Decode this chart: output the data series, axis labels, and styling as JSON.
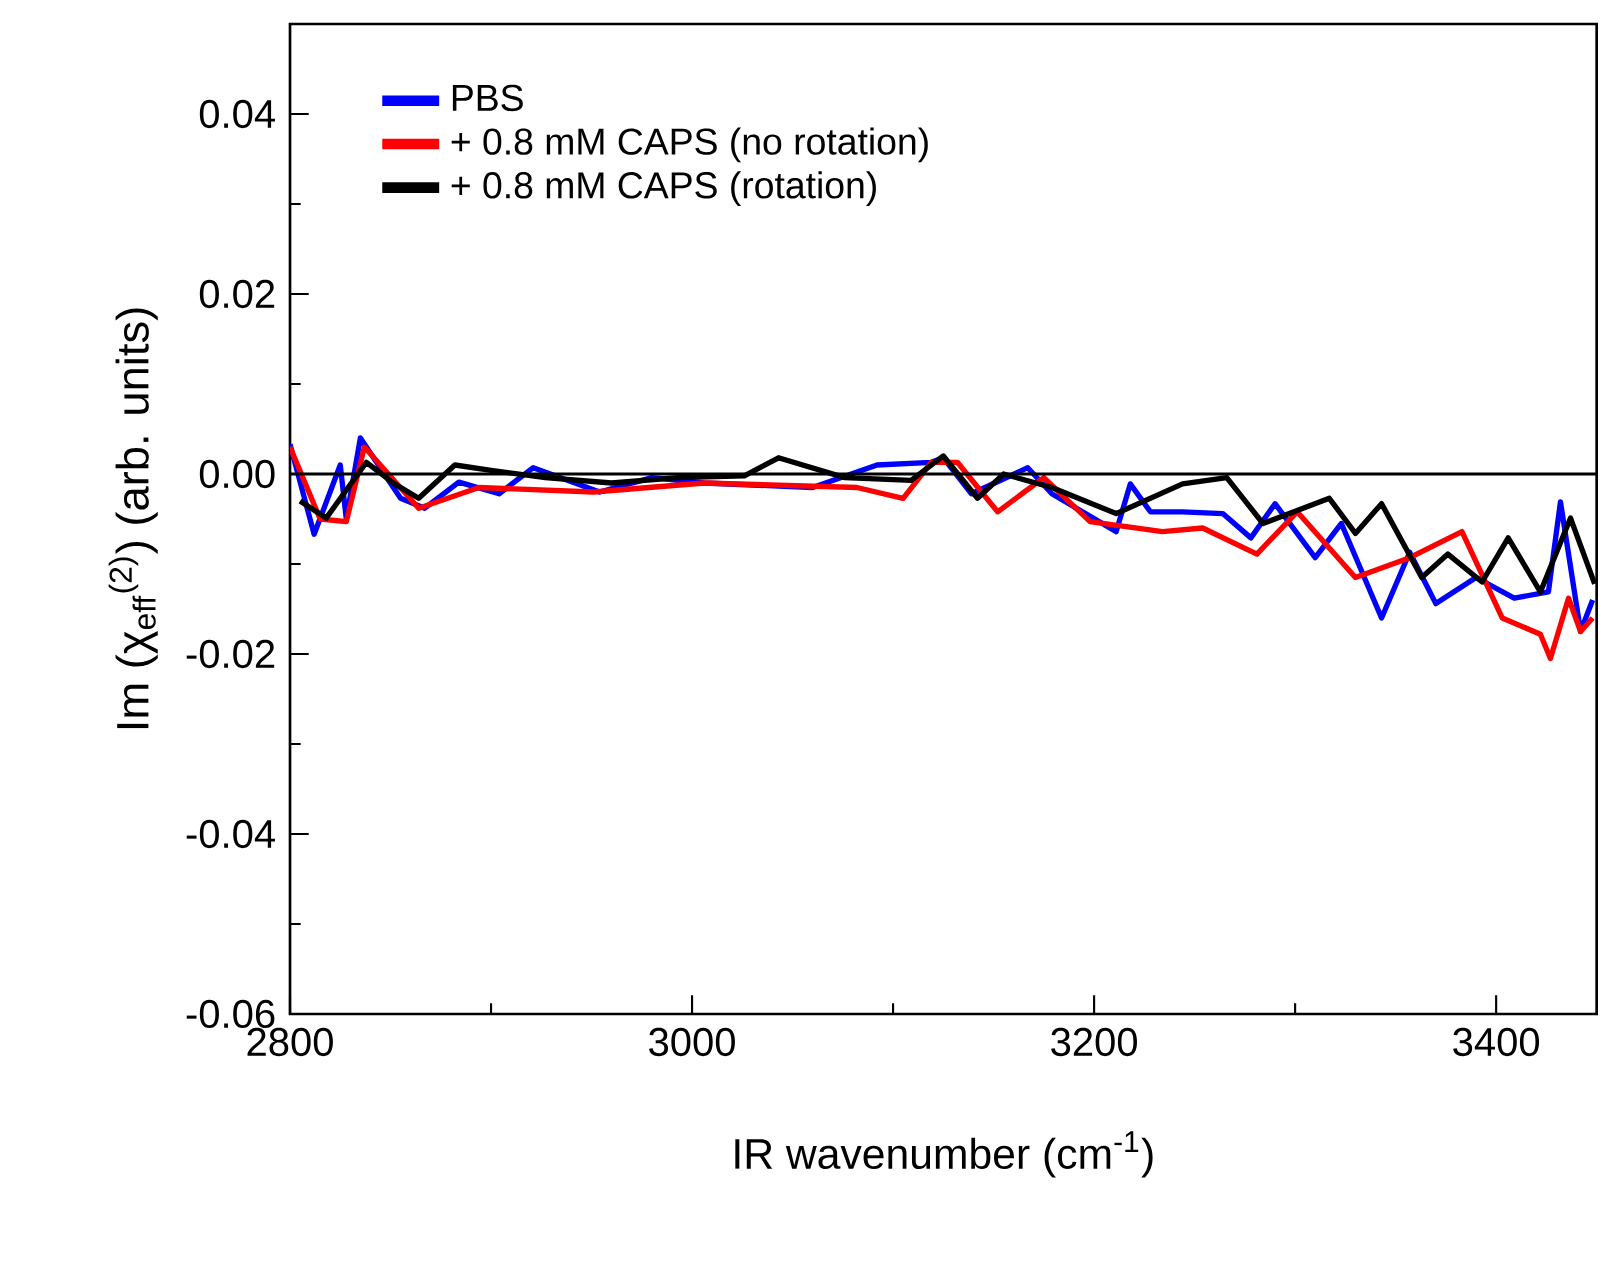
{
  "chart_data": {
    "type": "line",
    "xlabel": "IR wavenumber (cm$^{-1}$)",
    "ylabel": "Im (χ$_{eff}$$^{(2)}$) (arb. units)",
    "xlim": [
      2800,
      3450
    ],
    "xticks": [
      2800,
      3000,
      3200,
      3400
    ],
    "ylim": [
      -0.06,
      0.05
    ],
    "yticks": [
      {
        "value": -0.06,
        "label": "-0.06"
      },
      {
        "value": -0.04,
        "label": "-0.04"
      },
      {
        "value": -0.02,
        "label": "-0.02"
      },
      {
        "value": 0,
        "label": "0.00"
      },
      {
        "value": 0.02,
        "label": "0.02"
      },
      {
        "value": 0.04,
        "label": "0.04"
      }
    ],
    "grid": false,
    "legend": "top left",
    "marker": "none",
    "line_style": "solid",
    "ref_lines": [
      {
        "axis": "y",
        "value": 0,
        "color": "#000000"
      }
    ],
    "series": [
      {
        "name": "PBS",
        "color": "#0000ff",
        "x": [
          2800,
          2812,
          2825,
          2828,
          2835,
          2855,
          2867,
          2884,
          2904,
          2921,
          2954,
          2980,
          3006,
          3060,
          3092,
          3119,
          3125,
          3139,
          3167,
          3179,
          3211,
          3218,
          3228,
          3244,
          3264,
          3278,
          3290,
          3310,
          3323,
          3343,
          3357,
          3370,
          3390,
          3409,
          3426,
          3432,
          3442,
          3448
        ],
        "values": [
          0.0033,
          -0.0067,
          0.001,
          -0.005,
          0.004,
          -0.0027,
          -0.0038,
          -0.0009,
          -0.0022,
          0.0007,
          -0.002,
          -0.0004,
          -0.001,
          -0.0015,
          0.001,
          0.0013,
          0.0018,
          -0.0022,
          0.0007,
          -0.0022,
          -0.0064,
          -0.0011,
          -0.0042,
          -0.0042,
          -0.0044,
          -0.0071,
          -0.0033,
          -0.0093,
          -0.0055,
          -0.016,
          -0.0087,
          -0.0144,
          -0.0115,
          -0.0138,
          -0.0131,
          -0.0031,
          -0.0175,
          -0.014
        ]
      },
      {
        "name": "+ 0.8 mM CAPS (no rotation)",
        "color": "#ff0000",
        "x": [
          2800,
          2815,
          2828,
          2837,
          2864,
          2894,
          2951,
          3006,
          3082,
          3105,
          3119,
          3132,
          3152,
          3175,
          3198,
          3234,
          3254,
          3281,
          3301,
          3330,
          3357,
          3383,
          3403,
          3422,
          3427,
          3436,
          3442,
          3448
        ],
        "values": [
          0.003,
          -0.005,
          -0.0053,
          0.003,
          -0.0038,
          -0.0015,
          -0.002,
          -0.001,
          -0.0015,
          -0.0027,
          0.0013,
          0.0013,
          -0.0042,
          -0.0004,
          -0.0053,
          -0.0064,
          -0.006,
          -0.0089,
          -0.0042,
          -0.0115,
          -0.0093,
          -0.0064,
          -0.016,
          -0.0178,
          -0.0205,
          -0.0138,
          -0.0175,
          -0.016
        ]
      },
      {
        "name": "+ 0.8 mM CAPS (rotation)",
        "color": "#000000",
        "x": [
          2805,
          2818,
          2838,
          2852,
          2864,
          2882,
          2900,
          2927,
          2960,
          2993,
          3026,
          3043,
          3076,
          3109,
          3125,
          3142,
          3155,
          3179,
          3211,
          3244,
          3266,
          3284,
          3317,
          3330,
          3343,
          3363,
          3376,
          3393,
          3406,
          3422,
          3437,
          3449
        ],
        "values": [
          -0.003,
          -0.0049,
          0.0013,
          -0.0011,
          -0.0027,
          0.001,
          0.0004,
          -0.0004,
          -0.001,
          -0.0004,
          -0.0002,
          0.0018,
          -0.0004,
          -0.0007,
          0.002,
          -0.0027,
          0,
          -0.0015,
          -0.0044,
          -0.0011,
          -0.0004,
          -0.0055,
          -0.0027,
          -0.0066,
          -0.0033,
          -0.0115,
          -0.0089,
          -0.012,
          -0.0071,
          -0.0131,
          -0.0049,
          -0.0122
        ]
      }
    ]
  }
}
